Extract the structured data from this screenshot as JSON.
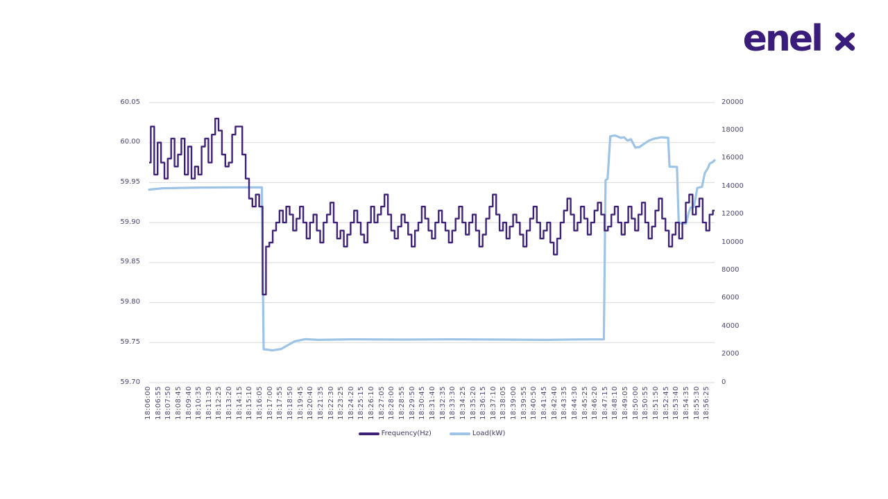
{
  "logo": {
    "text": "enel",
    "x_symbol": "x",
    "color": "#3a1d7a"
  },
  "colors": {
    "background": "#ffffff",
    "grid": "#d9d9d9",
    "axis_text": "#4d4770",
    "legend_text": "#3f3a66"
  },
  "chart_data": {
    "type": "line",
    "title": "",
    "xlabel": "",
    "ylabel_left": "Frequency(Hz)",
    "ylabel_right": "Load(kW)",
    "grid": "horizontal",
    "legend_position": "bottom",
    "samples_per_label": 3,
    "left_axis": {
      "min": 59.7,
      "max": 60.05,
      "step": 0.05,
      "ticks": [
        "60.05",
        "60.00",
        "59.95",
        "59.90",
        "59.85",
        "59.80",
        "59.75",
        "59.70"
      ]
    },
    "right_axis": {
      "min": 0,
      "max": 20000,
      "step": 2000,
      "ticks": [
        "20000",
        "18000",
        "16000",
        "14000",
        "12000",
        "10000",
        "8000",
        "6000",
        "4000",
        "2000",
        "0"
      ]
    },
    "x_labels": [
      "18:06:00",
      "18:06:55",
      "18:07:50",
      "18:08:45",
      "18:09:40",
      "18:10:35",
      "18:11:30",
      "18:12:25",
      "18:13:20",
      "18:14:15",
      "18:15:10",
      "18:16:05",
      "18:17:00",
      "18:17:55",
      "18:18:50",
      "18:19:45",
      "18:20:40",
      "18:21:35",
      "18:22:30",
      "18:23:25",
      "18:24:20",
      "18:25:15",
      "18:26:10",
      "18:27:05",
      "18:28:00",
      "18:28:55",
      "18:29:50",
      "18:30:45",
      "18:31:40",
      "18:32:35",
      "18:33:30",
      "18:34:25",
      "18:35:20",
      "18:36:15",
      "18:37:10",
      "18:38:05",
      "18:39:00",
      "18:39:55",
      "18:40:50",
      "18:41:45",
      "18:42:40",
      "18:43:35",
      "18:44:30",
      "18:45:25",
      "18:46:20",
      "18:47:15",
      "18:48:10",
      "18:49:05",
      "18:50:00",
      "18:50:55",
      "18:51:50",
      "18:52:45",
      "18:53:40",
      "18:54:35",
      "18:55:30",
      "18:56:25"
    ],
    "series": [
      {
        "name": "Frequency(Hz)",
        "color": "#3d2179",
        "axis": "left",
        "style": "step",
        "values": [
          59.975,
          60.02,
          59.96,
          60.0,
          59.975,
          59.955,
          59.98,
          60.005,
          59.97,
          59.985,
          60.005,
          59.96,
          59.995,
          59.955,
          59.97,
          59.96,
          59.995,
          60.005,
          59.975,
          60.01,
          60.03,
          60.015,
          59.985,
          59.97,
          59.975,
          60.01,
          60.02,
          60.02,
          59.985,
          59.955,
          59.93,
          59.92,
          59.935,
          59.92,
          59.81,
          59.87,
          59.875,
          59.89,
          59.9,
          59.915,
          59.9,
          59.92,
          59.91,
          59.89,
          59.905,
          59.92,
          59.9,
          59.88,
          59.9,
          59.91,
          59.89,
          59.875,
          59.9,
          59.91,
          59.925,
          59.9,
          59.88,
          59.89,
          59.87,
          59.885,
          59.9,
          59.915,
          59.9,
          59.885,
          59.875,
          59.9,
          59.92,
          59.9,
          59.91,
          59.92,
          59.935,
          59.91,
          59.89,
          59.88,
          59.895,
          59.91,
          59.9,
          59.885,
          59.87,
          59.89,
          59.9,
          59.92,
          59.905,
          59.89,
          59.88,
          59.9,
          59.915,
          59.9,
          59.89,
          59.875,
          59.89,
          59.905,
          59.92,
          59.9,
          59.885,
          59.9,
          59.91,
          59.89,
          59.87,
          59.885,
          59.905,
          59.92,
          59.935,
          59.91,
          59.89,
          59.9,
          59.88,
          59.895,
          59.91,
          59.9,
          59.885,
          59.87,
          59.89,
          59.905,
          59.92,
          59.9,
          59.88,
          59.89,
          59.9,
          59.875,
          59.86,
          59.88,
          59.9,
          59.915,
          59.93,
          59.91,
          59.89,
          59.9,
          59.92,
          59.905,
          59.885,
          59.9,
          59.915,
          59.925,
          59.91,
          59.89,
          59.895,
          59.91,
          59.92,
          59.9,
          59.885,
          59.9,
          59.92,
          59.905,
          59.89,
          59.91,
          59.925,
          59.9,
          59.88,
          59.895,
          59.915,
          59.93,
          59.905,
          59.89,
          59.87,
          59.885,
          59.9,
          59.88,
          59.9,
          59.925,
          59.935,
          59.91,
          59.92,
          59.93,
          59.9,
          59.89,
          59.91,
          59.915
        ]
      },
      {
        "name": "Load(kW)",
        "color": "#9dc3e6",
        "axis": "right",
        "style": "linear",
        "breakpoints": [
          [
            0,
            13780
          ],
          [
            4,
            13880
          ],
          [
            15,
            13930
          ],
          [
            25,
            13940
          ],
          [
            33.3,
            13940
          ],
          [
            33.8,
            2380
          ],
          [
            36.5,
            2300
          ],
          [
            39,
            2400
          ],
          [
            43,
            2950
          ],
          [
            46,
            3100
          ],
          [
            50,
            3050
          ],
          [
            60,
            3090
          ],
          [
            75,
            3070
          ],
          [
            90,
            3090
          ],
          [
            105,
            3070
          ],
          [
            118,
            3050
          ],
          [
            126,
            3080
          ],
          [
            134.3,
            3090
          ],
          [
            134.8,
            14450
          ],
          [
            135.4,
            14550
          ],
          [
            136.2,
            17600
          ],
          [
            137.6,
            17650
          ],
          [
            139.3,
            17480
          ],
          [
            140.3,
            17520
          ],
          [
            141.3,
            17280
          ],
          [
            142.3,
            17380
          ],
          [
            143.6,
            16780
          ],
          [
            144.8,
            16820
          ],
          [
            146.2,
            17060
          ],
          [
            147.6,
            17280
          ],
          [
            149.3,
            17430
          ],
          [
            151.3,
            17520
          ],
          [
            153.3,
            17480
          ],
          [
            153.7,
            15420
          ],
          [
            155.9,
            15400
          ],
          [
            156.4,
            11500
          ],
          [
            157.0,
            11380
          ],
          [
            158.6,
            11350
          ],
          [
            159.3,
            12100
          ],
          [
            159.9,
            12500
          ],
          [
            160.9,
            12550
          ],
          [
            161.9,
            13900
          ],
          [
            163.3,
            13980
          ],
          [
            164.1,
            14950
          ],
          [
            165.0,
            15300
          ],
          [
            165.6,
            15650
          ],
          [
            166.4,
            15750
          ],
          [
            167,
            15880
          ]
        ]
      }
    ]
  },
  "legend": {
    "items": [
      {
        "label": "Frequency(Hz)"
      },
      {
        "label": "Load(kW)"
      }
    ]
  }
}
